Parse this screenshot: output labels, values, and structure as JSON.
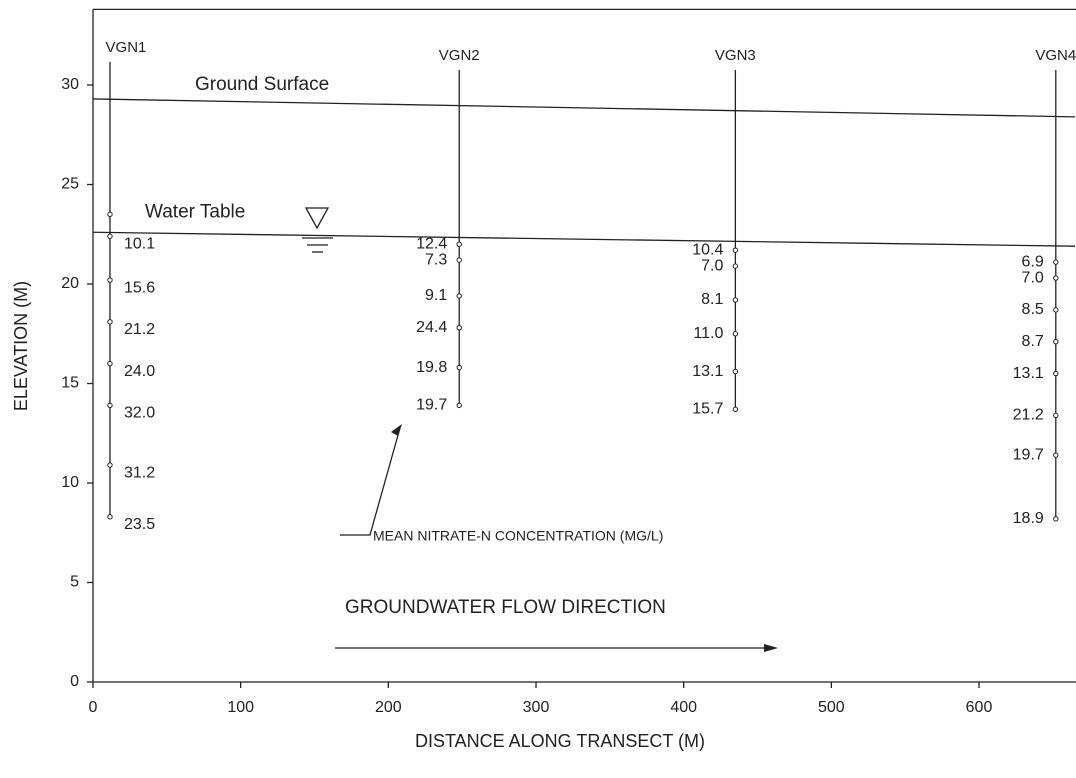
{
  "chart_data": {
    "type": "cross-section",
    "xlabel": "DISTANCE ALONG TRANSECT (M)",
    "ylabel": "ELEVATION (M)",
    "xlim": [
      0,
      665
    ],
    "ylim": [
      0,
      33.8
    ],
    "xticks": [
      0,
      100,
      200,
      300,
      400,
      500,
      600
    ],
    "yticks": [
      0,
      5,
      10,
      15,
      20,
      25,
      30
    ],
    "surfaces": [
      {
        "name": "Ground Surface",
        "x": [
          0,
          665
        ],
        "y": [
          29.3,
          28.4
        ]
      },
      {
        "name": "Water Table",
        "x": [
          0,
          665
        ],
        "y": [
          22.6,
          21.9
        ]
      }
    ],
    "wells": [
      {
        "name": "VGN1",
        "x": 11.5,
        "y": [
          23.5,
          22.4,
          20.2,
          18.1,
          16.0,
          13.9,
          10.9,
          8.3
        ],
        "values": [
          null,
          10.1,
          15.6,
          21.2,
          24.0,
          32.0,
          31.2,
          23.5
        ],
        "value_labels": [
          null,
          "10.1",
          "15.6",
          "21.2",
          "24.0",
          "32.0",
          "31.2",
          "23.5"
        ]
      },
      {
        "name": "VGN2",
        "x": 248,
        "y": [
          22.0,
          21.2,
          19.4,
          17.8,
          15.8,
          13.9
        ],
        "values": [
          12.4,
          7.3,
          9.1,
          24.4,
          19.8,
          19.7
        ],
        "value_labels": [
          "12.4",
          "7.3",
          "9.1",
          "24.4",
          "19.8",
          "19.7"
        ]
      },
      {
        "name": "VGN3",
        "x": 435,
        "y": [
          21.7,
          20.9,
          19.2,
          17.5,
          15.6,
          13.7
        ],
        "values": [
          10.4,
          7.0,
          8.1,
          11.0,
          13.1,
          15.7
        ],
        "value_labels": [
          "10.4",
          "7.0",
          "8.1",
          "11.0",
          "13.1",
          "15.7"
        ]
      },
      {
        "name": "VGN4",
        "x": 652,
        "y": [
          21.1,
          20.3,
          18.7,
          17.1,
          15.5,
          13.4,
          11.4,
          8.2
        ],
        "values": [
          6.9,
          7.0,
          8.5,
          8.7,
          13.1,
          21.2,
          19.7,
          18.9
        ],
        "value_labels": [
          "6.9",
          "7.0",
          "8.5",
          "8.7",
          "13.1",
          "21.2",
          "19.7",
          "18.9"
        ]
      }
    ],
    "annotations": [
      "MEAN NITRATE-N CONCENTRATION (MG/L)",
      "GROUNDWATER FLOW DIRECTION"
    ]
  }
}
